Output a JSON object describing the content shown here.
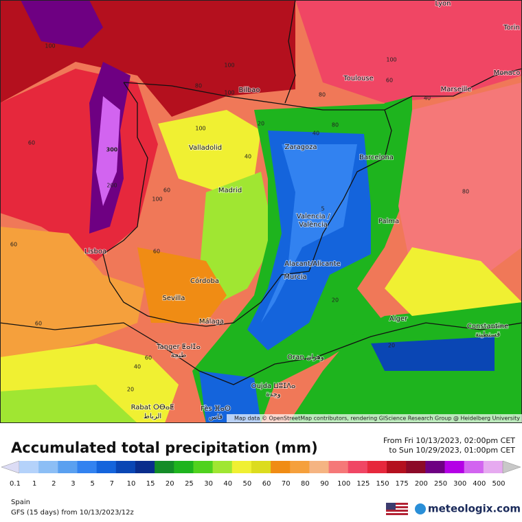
{
  "map": {
    "cities": [
      "Lyon",
      "Torin",
      "Toulouse",
      "Monaco",
      "Marseille",
      "Bilbao",
      "Valladolid",
      "Zaragoza",
      "Barcelona",
      "Madrid",
      "Valencia /",
      "València",
      "Palma",
      "Lisboa",
      "Alacant/Alicante",
      "Murcia",
      "Córdoba",
      "Sevilla",
      "Málaga",
      "Alger",
      "Constantine",
      "قسنطينة",
      "Tanger ⵟⴰⵏⵊⴰ",
      "طنجة",
      "Oran وهران",
      "Oujda ⵡⵓⵊⴷⴰ",
      "وجدة",
      "Rabat ⵔⴱⴰⵟ",
      "الرباط",
      "Fès ⴼⴰⵙ",
      "فاس"
    ],
    "contour_labels": [
      100,
      100,
      100,
      80,
      100,
      80,
      60,
      40,
      80,
      40,
      20,
      100,
      60,
      300,
      40,
      60,
      100,
      200,
      80,
      5,
      60,
      60,
      20,
      60,
      60,
      40,
      20,
      20
    ],
    "attribution": "Map data © OpenStreetMap contributors, rendering GIScience Research Group @ Heidelberg University"
  },
  "title": "Accumulated total precipitation (mm)",
  "period": [
    "From Fri 10/13/2023, 02:00pm CET",
    "to Sun 10/29/2023, 01:00pm CET"
  ],
  "colorbar": {
    "ticks": [
      0.1,
      1,
      2,
      3,
      5,
      7,
      10,
      15,
      20,
      25,
      30,
      40,
      50,
      60,
      70,
      80,
      90,
      100,
      125,
      150,
      175,
      200,
      250,
      300,
      400,
      500
    ],
    "colors": [
      "#dcdcf5",
      "#b4d2fa",
      "#8cbef5",
      "#5aa0f0",
      "#3282f0",
      "#1464dc",
      "#0a46b4",
      "#0a2d8c",
      "#148c28",
      "#1eb41e",
      "#50d21e",
      "#a0e632",
      "#f0f032",
      "#dcdc1e",
      "#f08c14",
      "#f5a03c",
      "#f5b482",
      "#f57878",
      "#f04664",
      "#e6283c",
      "#b4101e",
      "#8c0a28",
      "#6e0082",
      "#b400e6",
      "#d264f0",
      "#e6aaf0",
      "#f5dcf5",
      "#f5f0f5",
      "#c8c8c8"
    ]
  },
  "region": "Spain",
  "model": "GFS (15 days) from 10/13/2023/12z",
  "brand": "meteologix.com"
}
